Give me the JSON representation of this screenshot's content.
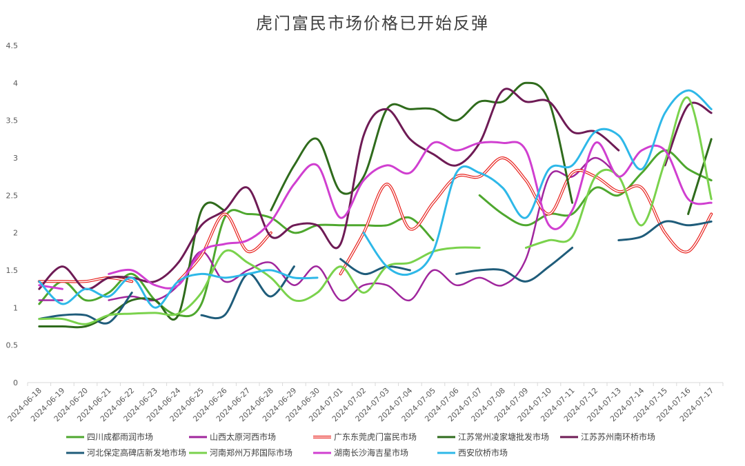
{
  "chart_data": {
    "type": "line",
    "title": "虎门富民市场价格已开始反弹",
    "xlabel": "",
    "ylabel": "",
    "ylim": [
      0,
      4.5
    ],
    "yticks": [
      0,
      0.5,
      1,
      1.5,
      2,
      2.5,
      3,
      3.5,
      4,
      4.5
    ],
    "ytick_labels": [
      "0",
      "0.5",
      "1",
      "1.5",
      "2",
      "2.5",
      "3",
      "3.5",
      "4",
      "4.5"
    ],
    "grid": false,
    "legend_position": "bottom",
    "x": [
      "2024-06-18",
      "2024-06-19",
      "2024-06-20",
      "2024-06-21",
      "2024-06-22",
      "2024-06-23",
      "2024-06-24",
      "2024-06-25",
      "2024-06-26",
      "2024-06-27",
      "2024-06-28",
      "2024-06-29",
      "2024-06-30",
      "2024-07-01",
      "2024-07-02",
      "2024-07-03",
      "2024-07-04",
      "2024-07-05",
      "2024-07-06",
      "2024-07-07",
      "2024-07-08",
      "2024-07-09",
      "2024-07-10",
      "2024-07-11",
      "2024-07-12",
      "2024-07-13",
      "2024-07-14",
      "2024-07-15",
      "2024-07-16",
      "2024-07-17"
    ],
    "series": [
      {
        "name": "四川成都雨润市场",
        "color": "#4ea72e",
        "style": "solid",
        "width": 3,
        "values": [
          1.05,
          1.35,
          1.1,
          1.2,
          1.45,
          1.1,
          0.9,
          1.05,
          2.2,
          2.25,
          2.2,
          2.0,
          2.1,
          2.1,
          2.1,
          2.1,
          2.2,
          1.9,
          null,
          2.5,
          2.25,
          2.1,
          2.25,
          2.25,
          2.6,
          2.5,
          2.8,
          3.1,
          2.85,
          2.7
        ]
      },
      {
        "name": "山西太原河西市场",
        "color": "#a0269d",
        "style": "solid",
        "width": 2.5,
        "values": [
          1.1,
          1.1,
          null,
          1.1,
          1.15,
          1.1,
          1.3,
          1.75,
          1.35,
          1.5,
          1.6,
          1.3,
          1.55,
          1.1,
          1.3,
          1.3,
          1.1,
          1.5,
          1.3,
          1.4,
          1.3,
          1.65,
          2.75,
          2.75,
          3.0,
          2.75,
          null,
          null,
          null,
          null
        ]
      },
      {
        "name": "广东东莞虎门富民市场",
        "color": "#e8201c",
        "style": "double",
        "width": 3,
        "values": [
          1.35,
          1.35,
          1.35,
          1.4,
          1.35,
          null,
          1.35,
          1.7,
          2.25,
          1.75,
          2.0,
          null,
          null,
          1.45,
          2.0,
          2.65,
          2.05,
          2.4,
          2.75,
          2.75,
          3.0,
          2.7,
          2.25,
          2.8,
          2.75,
          2.55,
          2.6,
          2.0,
          1.75,
          2.25
        ]
      },
      {
        "name": "江苏常州凌家塘批发市场",
        "color": "#2f6b1c",
        "style": "solid",
        "width": 3,
        "values": [
          0.75,
          0.75,
          0.75,
          0.9,
          1.1,
          1.1,
          0.9,
          2.3,
          2.3,
          null,
          2.3,
          2.9,
          3.25,
          2.55,
          2.75,
          3.65,
          3.65,
          3.65,
          3.5,
          3.75,
          3.75,
          4.0,
          3.75,
          2.4,
          null,
          null,
          null,
          null,
          2.25,
          3.25
        ]
      },
      {
        "name": "江苏苏州南环桥市场",
        "color": "#6e1b55",
        "style": "solid",
        "width": 3,
        "values": [
          1.25,
          1.55,
          1.25,
          1.4,
          1.4,
          1.35,
          1.6,
          2.1,
          2.3,
          2.6,
          1.95,
          2.1,
          2.1,
          1.85,
          3.3,
          3.65,
          3.25,
          3.05,
          2.9,
          3.2,
          3.9,
          3.75,
          3.75,
          3.35,
          3.35,
          3.1,
          null,
          2.9,
          3.7,
          3.6
        ]
      },
      {
        "name": "河北保定高碑店新发地市场",
        "color": "#1f5c7a",
        "style": "solid",
        "width": 3,
        "values": [
          0.85,
          0.9,
          0.9,
          0.8,
          1.2,
          null,
          null,
          0.9,
          0.9,
          1.45,
          1.15,
          1.55,
          null,
          1.65,
          1.45,
          1.55,
          1.5,
          null,
          1.45,
          1.5,
          1.5,
          1.35,
          1.55,
          1.8,
          null,
          1.9,
          1.95,
          2.15,
          2.1,
          2.15
        ]
      },
      {
        "name": "河南郑州万邦国际市场",
        "color": "#7ad24c",
        "style": "solid",
        "width": 3,
        "values": [
          0.85,
          0.85,
          0.78,
          0.9,
          0.92,
          0.93,
          0.92,
          1.2,
          1.75,
          1.6,
          1.4,
          1.1,
          1.2,
          1.55,
          1.2,
          1.55,
          1.6,
          1.75,
          1.8,
          1.8,
          null,
          1.8,
          1.9,
          1.95,
          2.75,
          2.75,
          2.1,
          2.95,
          3.8,
          2.45
        ]
      },
      {
        "name": "湖南长沙海吉星市场",
        "color": "#d03fd0",
        "style": "solid",
        "width": 3,
        "values": [
          1.3,
          1.25,
          null,
          1.45,
          1.5,
          1.3,
          1.3,
          1.75,
          1.85,
          1.9,
          2.15,
          2.65,
          2.9,
          2.2,
          2.7,
          2.9,
          2.8,
          3.2,
          3.1,
          3.2,
          3.2,
          3.1,
          2.1,
          2.3,
          3.2,
          2.75,
          3.1,
          3.1,
          2.45,
          2.4
        ]
      },
      {
        "name": "西安欣桥市场",
        "color": "#2eb8e8",
        "style": "solid",
        "width": 3,
        "values": [
          1.35,
          1.05,
          1.25,
          1.15,
          1.4,
          1.0,
          1.35,
          1.45,
          1.4,
          1.45,
          1.5,
          1.4,
          1.4,
          null,
          2.0,
          1.55,
          1.45,
          1.75,
          2.8,
          2.8,
          2.6,
          2.2,
          2.85,
          2.9,
          3.35,
          3.3,
          2.85,
          3.6,
          3.9,
          3.65
        ]
      }
    ]
  }
}
